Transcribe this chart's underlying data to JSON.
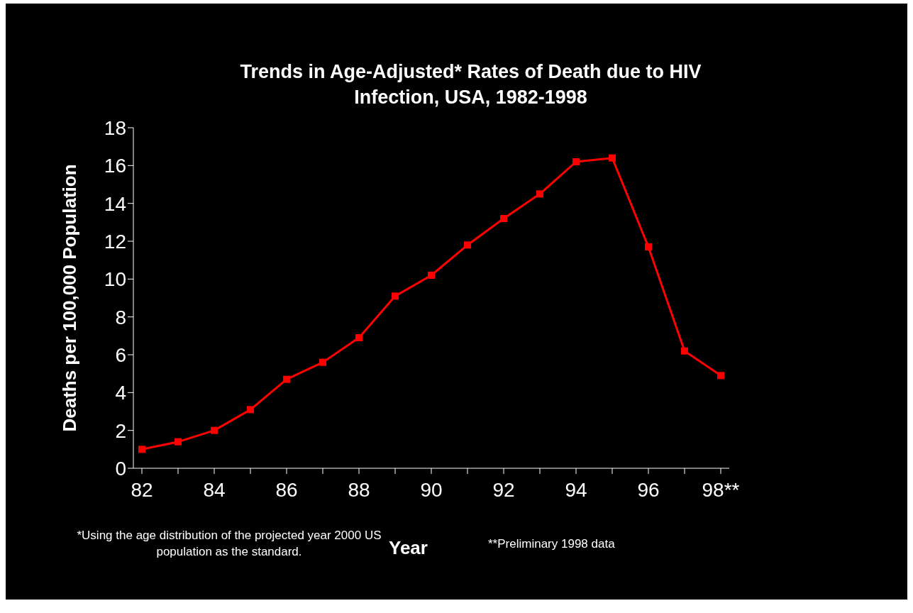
{
  "chart_data": {
    "type": "line",
    "title": "Trends in Age-Adjusted* Rates of Death due to HIV Infection, USA, 1982-1998",
    "xlabel": "Year",
    "ylabel": "Deaths per 100,000 Population",
    "categories": [
      "82",
      null,
      "84",
      null,
      "86",
      null,
      "88",
      null,
      "90",
      null,
      "92",
      null,
      "94",
      null,
      "96",
      null,
      "98**"
    ],
    "series": [
      {
        "color": "#ff0000",
        "values": [
          1.0,
          1.4,
          2.0,
          3.1,
          4.7,
          5.6,
          6.9,
          9.1,
          10.2,
          11.8,
          13.2,
          14.5,
          16.2,
          16.4,
          11.7,
          6.2,
          4.9
        ]
      }
    ],
    "ylim": [
      0,
      18
    ],
    "yticks": [
      0,
      2,
      4,
      6,
      8,
      10,
      12,
      14,
      16,
      18
    ],
    "grid": false,
    "legend": false,
    "marker": "square",
    "line_style": "solid",
    "annotations": [
      "*Using the age distribution of the projected year 2000 US population as the standard.",
      "**Preliminary 1998 data"
    ]
  }
}
